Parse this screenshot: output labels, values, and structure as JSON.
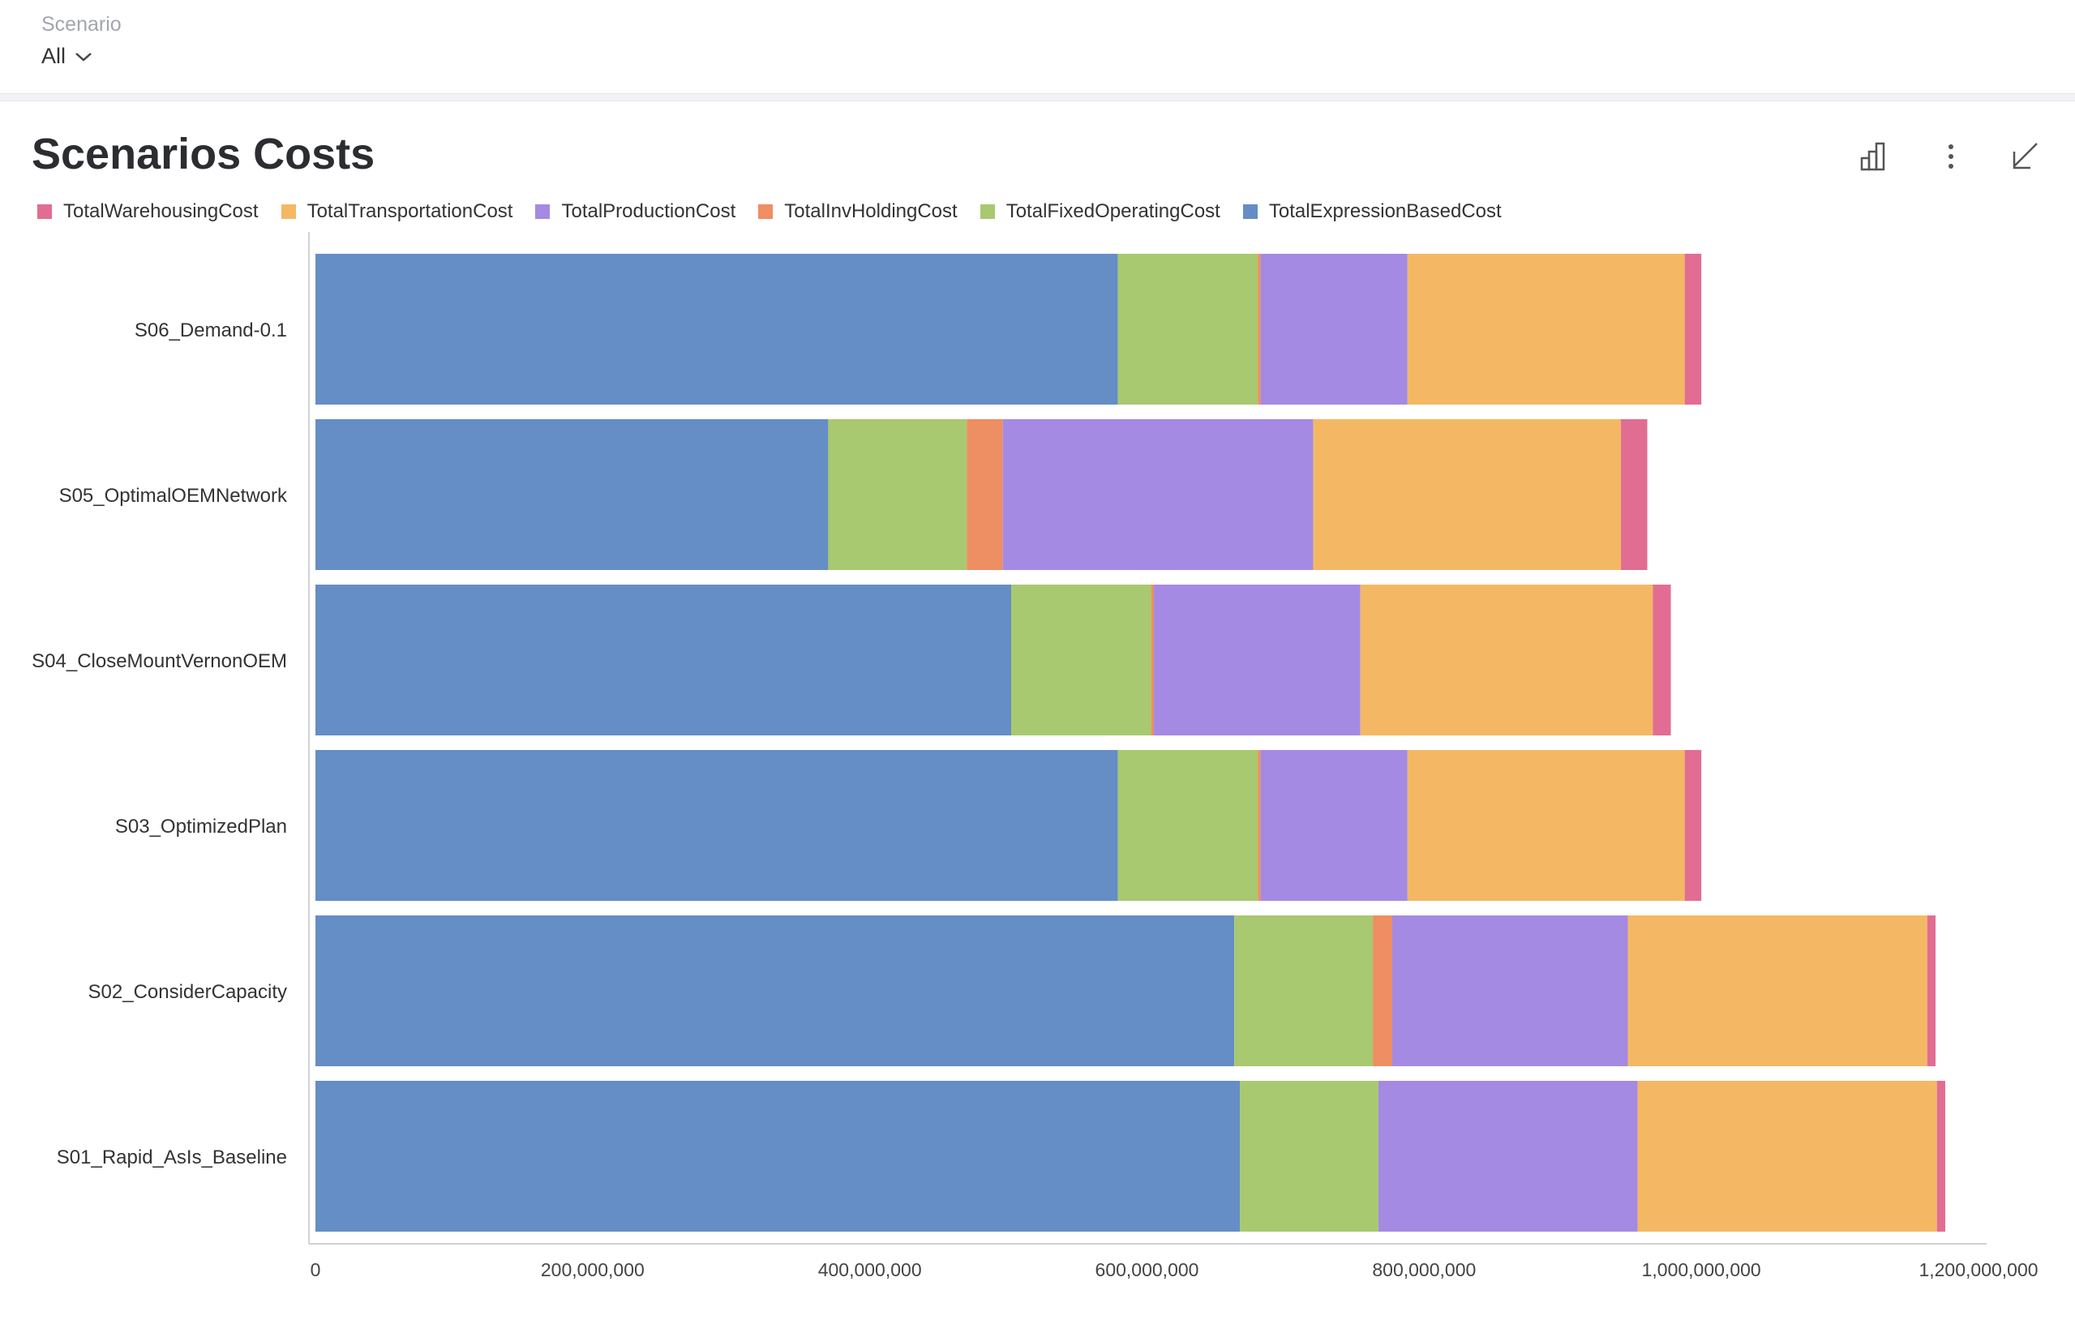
{
  "filter": {
    "label": "Scenario",
    "value": "All"
  },
  "card": {
    "title": "Scenarios Costs"
  },
  "icons": {
    "chart_type": "bar-chart-icon",
    "more": "more-vertical-icon",
    "collapse": "collapse-arrow-icon"
  },
  "chart_data": {
    "type": "bar",
    "orientation": "horizontal",
    "stacked": true,
    "title": "Scenarios Costs",
    "xlabel": "",
    "ylabel": "",
    "xlim": [
      0,
      1200000000
    ],
    "x_ticks": [
      {
        "value": 0,
        "label": "0"
      },
      {
        "value": 200000000,
        "label": "200,000,000"
      },
      {
        "value": 400000000,
        "label": "400,000,000"
      },
      {
        "value": 600000000,
        "label": "600,000,000"
      },
      {
        "value": 800000000,
        "label": "800,000,000"
      },
      {
        "value": 1000000000,
        "label": "1,000,000,000"
      },
      {
        "value": 1200000000,
        "label": "1,200,000,000"
      }
    ],
    "legend_position": "top-left",
    "legend_order": [
      "TotalWarehousingCost",
      "TotalTransportationCost",
      "TotalProductionCost",
      "TotalInvHoldingCost",
      "TotalFixedOperatingCost",
      "TotalExpressionBasedCost"
    ],
    "categories": [
      "S06_Demand-0.1",
      "S05_OptimalOEMNetwork",
      "S04_CloseMountVernonOEM",
      "S03_OptimizedPlan",
      "S02_ConsiderCapacity",
      "S01_Rapid_AsIs_Baseline"
    ],
    "series": [
      {
        "name": "TotalExpressionBasedCost",
        "color": "#658dc6",
        "values": [
          579000000,
          370000000,
          502000000,
          579000000,
          663000000,
          667000000
        ]
      },
      {
        "name": "TotalFixedOperatingCost",
        "color": "#a8c96f",
        "values": [
          101000000,
          100000000,
          101000000,
          101000000,
          100000000,
          100000000
        ]
      },
      {
        "name": "TotalInvHoldingCost",
        "color": "#ee8e63",
        "values": [
          2000000,
          26000000,
          2000000,
          2000000,
          14000000,
          0
        ]
      },
      {
        "name": "TotalProductionCost",
        "color": "#a48ae3",
        "values": [
          106000000,
          224000000,
          149000000,
          106000000,
          170000000,
          187000000
        ]
      },
      {
        "name": "TotalTransportationCost",
        "color": "#f4b864",
        "values": [
          200000000,
          222000000,
          211000000,
          200000000,
          216000000,
          216000000
        ]
      },
      {
        "name": "TotalWarehousingCost",
        "color": "#e26d92",
        "values": [
          12000000,
          19000000,
          13000000,
          12000000,
          6000000,
          6000000
        ]
      }
    ]
  }
}
